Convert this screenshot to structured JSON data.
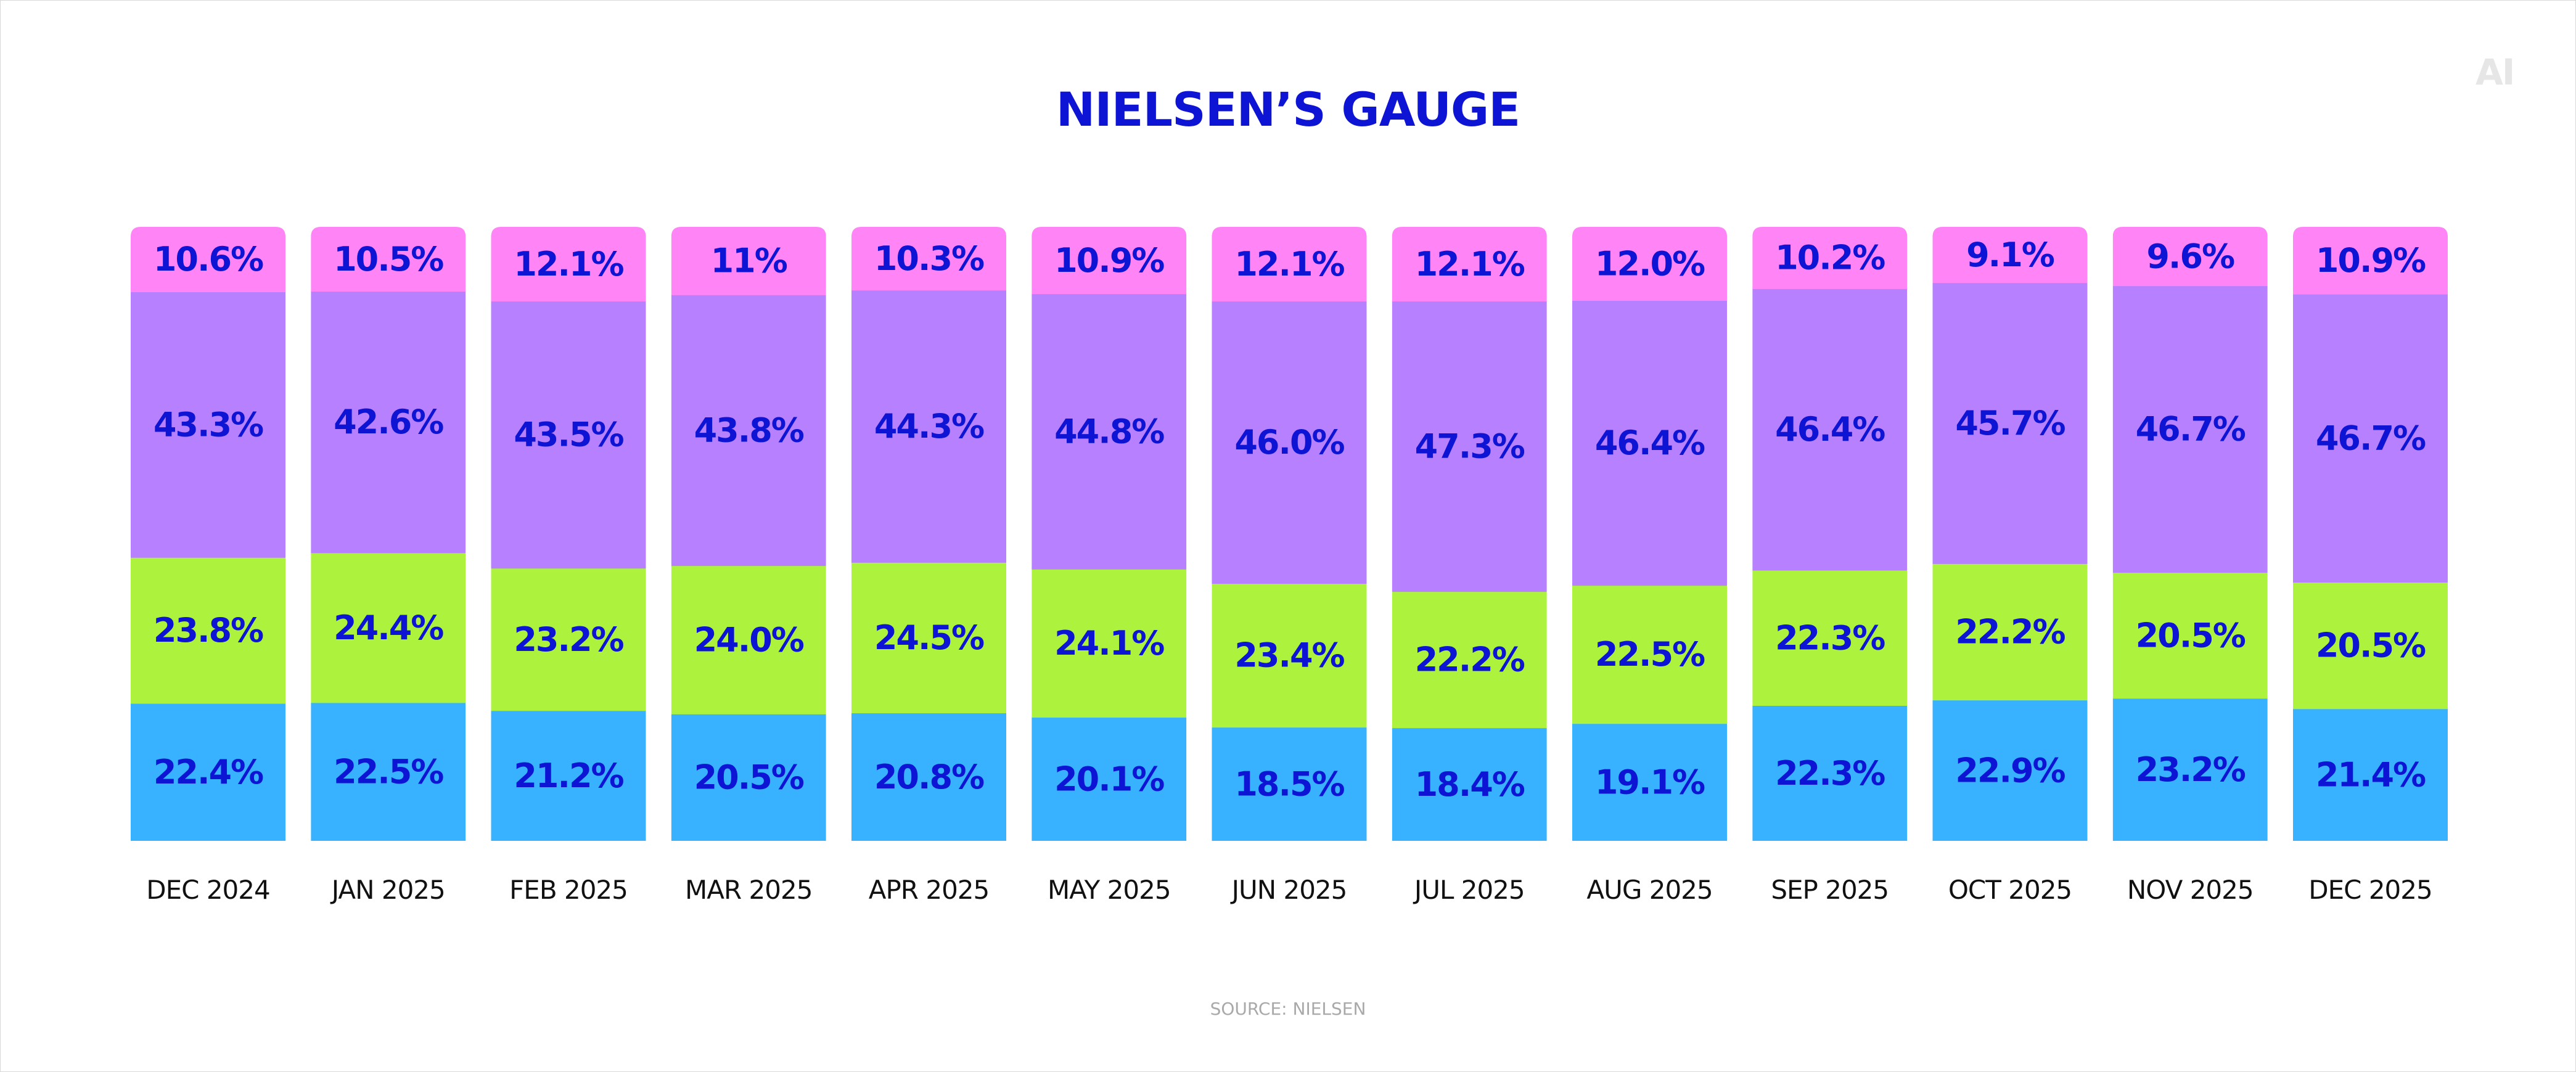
{
  "title": "NIELSEN’S GAUGE",
  "logo_text": "AI",
  "source": "SOURCE: NIELSEN",
  "colors": {
    "title": "#0e14d4",
    "label": "#0e14d4",
    "segments": [
      "#38b1ff",
      "#adf23d",
      "#b680fe",
      "#ff85f6"
    ]
  },
  "chart_data": {
    "type": "bar",
    "stacked": true,
    "title": "NIELSEN’S GAUGE",
    "xlabel": "",
    "ylabel": "",
    "categories": [
      "DEC 2024",
      "JAN 2025",
      "FEB 2025",
      "MAR 2025",
      "APR 2025",
      "MAY 2025",
      "JUN 2025",
      "JUL 2025",
      "AUG 2025",
      "SEP 2025",
      "OCT 2025",
      "NOV 2025",
      "DEC 2025"
    ],
    "series": [
      {
        "values": [
          22.4,
          22.5,
          21.2,
          20.5,
          20.8,
          20.1,
          18.5,
          18.4,
          19.1,
          22.3,
          22.9,
          23.2,
          21.4
        ],
        "labels": [
          "22.4%",
          "22.5%",
          "21.2%",
          "20.5%",
          "20.8%",
          "20.1%",
          "18.5%",
          "18.4%",
          "19.1%",
          "22.3%",
          "22.9%",
          "23.2%",
          "21.4%"
        ]
      },
      {
        "values": [
          23.8,
          24.4,
          23.2,
          24.0,
          24.5,
          24.1,
          23.4,
          22.2,
          22.5,
          22.3,
          22.2,
          20.5,
          20.5
        ],
        "labels": [
          "23.8%",
          "24.4%",
          "23.2%",
          "24.0%",
          "24.5%",
          "24.1%",
          "23.4%",
          "22.2%",
          "22.5%",
          "22.3%",
          "22.2%",
          "20.5%",
          "20.5%"
        ]
      },
      {
        "values": [
          43.3,
          42.6,
          43.5,
          43.8,
          44.3,
          44.8,
          46.0,
          47.3,
          46.4,
          46.4,
          45.7,
          46.7,
          46.7
        ],
        "labels": [
          "43.3%",
          "42.6%",
          "43.5%",
          "43.8%",
          "44.3%",
          "44.8%",
          "46.0%",
          "47.3%",
          "46.4%",
          "46.4%",
          "45.7%",
          "46.7%",
          "46.7%"
        ]
      },
      {
        "values": [
          10.6,
          10.5,
          12.1,
          11,
          10.3,
          10.9,
          12.1,
          12.1,
          12.0,
          10.2,
          9.1,
          9.6,
          10.9
        ],
        "labels": [
          "10.6%",
          "10.5%",
          "12.1%",
          "11%",
          "10.3%",
          "10.9%",
          "12.1%",
          "12.1%",
          "12.0%",
          "10.2%",
          "9.1%",
          "9.6%",
          "10.9%"
        ]
      }
    ],
    "ylim": [
      0,
      100
    ],
    "grid": false,
    "legend": "none"
  }
}
